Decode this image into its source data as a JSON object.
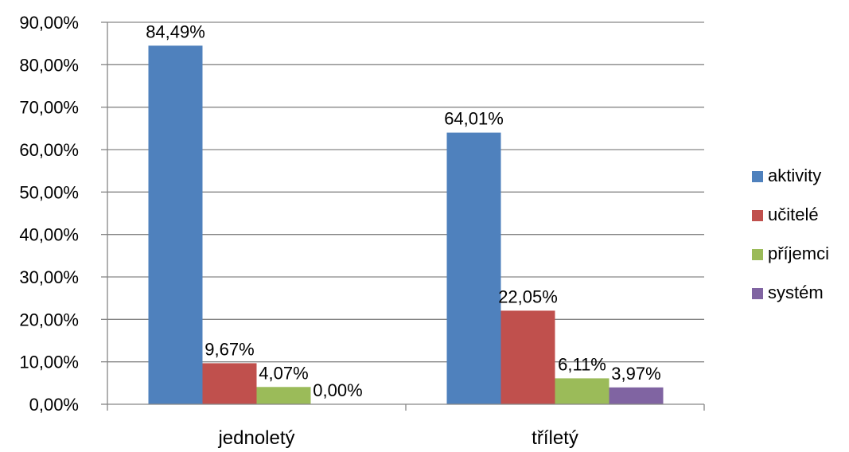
{
  "chart_data": {
    "type": "bar",
    "categories": [
      "jednoletý",
      "tříletý"
    ],
    "series": [
      {
        "name": "aktivity",
        "values": [
          84.49,
          64.01
        ],
        "labels": [
          "84,49%",
          "64,01%"
        ],
        "color": "#4F81BD"
      },
      {
        "name": "učitelé",
        "values": [
          9.67,
          22.05
        ],
        "labels": [
          "9,67%",
          "22,05%"
        ],
        "color": "#C0504D"
      },
      {
        "name": "příjemci",
        "values": [
          4.07,
          6.11
        ],
        "labels": [
          "4,07%",
          "6,11%"
        ],
        "color": "#9BBB59"
      },
      {
        "name": "systém",
        "values": [
          0.0,
          3.97
        ],
        "labels": [
          "0,00%",
          "3,97%"
        ],
        "color": "#8064A2"
      }
    ],
    "yticks": [
      0,
      10,
      20,
      30,
      40,
      50,
      60,
      70,
      80,
      90
    ],
    "ytick_labels": [
      "0,00%",
      "10,00%",
      "20,00%",
      "30,00%",
      "40,00%",
      "50,00%",
      "60,00%",
      "70,00%",
      "80,00%",
      "90,00%"
    ],
    "ylim": [
      0,
      90
    ],
    "unit": "%",
    "grid": true,
    "legend_position": "right",
    "title": "",
    "xlabel": "",
    "ylabel": ""
  }
}
